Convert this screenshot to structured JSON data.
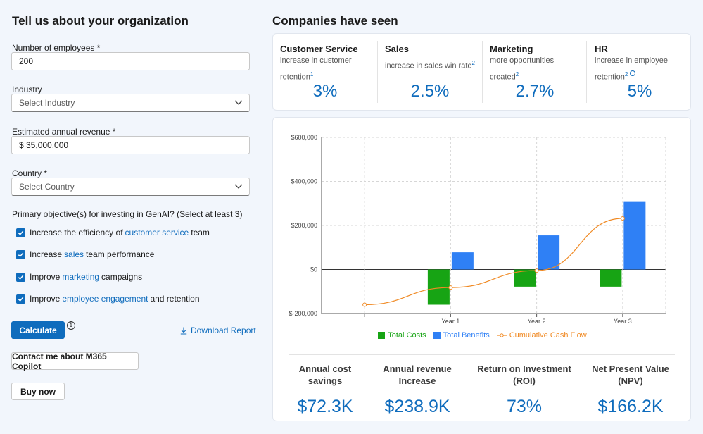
{
  "left": {
    "title": "Tell us about your organization",
    "employees": {
      "label": "Number of employees *",
      "value": "200"
    },
    "industry": {
      "label": "Industry",
      "placeholder": "Select Industry"
    },
    "revenue": {
      "label": "Estimated annual revenue *",
      "value": "$ 35,000,000"
    },
    "country": {
      "label": "Country *",
      "placeholder": "Select Country"
    },
    "objectives_title": "Primary objective(s) for investing in GenAI? (Select at least 3)",
    "objectives": [
      {
        "pre": "Increase the efficiency of ",
        "link": "customer service",
        "post": " team",
        "checked": true
      },
      {
        "pre": "Increase ",
        "link": "sales",
        "post": " team performance",
        "checked": true
      },
      {
        "pre": "Improve ",
        "link": "marketing",
        "post": " campaigns",
        "checked": true
      },
      {
        "pre": "Improve ",
        "link": "employee engagement",
        "post": " and retention",
        "checked": true
      }
    ],
    "calculate_label": "Calculate",
    "info_glyph": "i",
    "download_label": "Download Report",
    "contact_label": "Contact me about M365 Copilot",
    "buy_label": "Buy now"
  },
  "right": {
    "title": "Companies have seen",
    "stats": [
      {
        "title": "Customer Service",
        "desc": "increase in customer retention",
        "sup": "1",
        "value": "3%"
      },
      {
        "title": "Sales",
        "desc": "increase in sales win rate",
        "sup": "2",
        "value": "2.5%"
      },
      {
        "title": "Marketing",
        "desc": "more opportunities created",
        "sup": "2",
        "value": "2.7%"
      },
      {
        "title": "HR",
        "desc": "increase in employee retention",
        "sup": "2",
        "value": "5%"
      }
    ],
    "metrics": [
      {
        "label": "Annual cost savings",
        "value": "$72.3K"
      },
      {
        "label": "Annual revenue Increase",
        "value": "$238.9K"
      },
      {
        "label": "Return on Investment (ROI)",
        "value": "73%"
      },
      {
        "label": "Net Present Value (NPV)",
        "value": "$166.2K"
      }
    ]
  },
  "colors": {
    "accent": "#0f6cbd",
    "costs": "#17a414",
    "benefits": "#2f80f5",
    "cashflow": "#f08a24"
  },
  "chart_data": {
    "type": "bar",
    "categories": [
      "",
      "Year 1",
      "Year 2",
      "Year 3"
    ],
    "series": [
      {
        "name": "Total Costs",
        "kind": "bar",
        "values": [
          null,
          -160000,
          -78000,
          -78000
        ]
      },
      {
        "name": "Total Benefits",
        "kind": "bar",
        "values": [
          null,
          78000,
          155000,
          310000
        ]
      },
      {
        "name": "Cumulative Cash Flow",
        "kind": "line",
        "values": [
          -160000,
          -82000,
          -5000,
          232000
        ]
      }
    ],
    "yticks": [
      -200000,
      0,
      200000,
      400000,
      600000
    ],
    "ytick_labels": [
      "$-200,000",
      "$0",
      "$200,000",
      "$400,000",
      "$600,000"
    ],
    "ylim": [
      -200000,
      600000
    ],
    "grid": true,
    "legend": "bottom"
  }
}
